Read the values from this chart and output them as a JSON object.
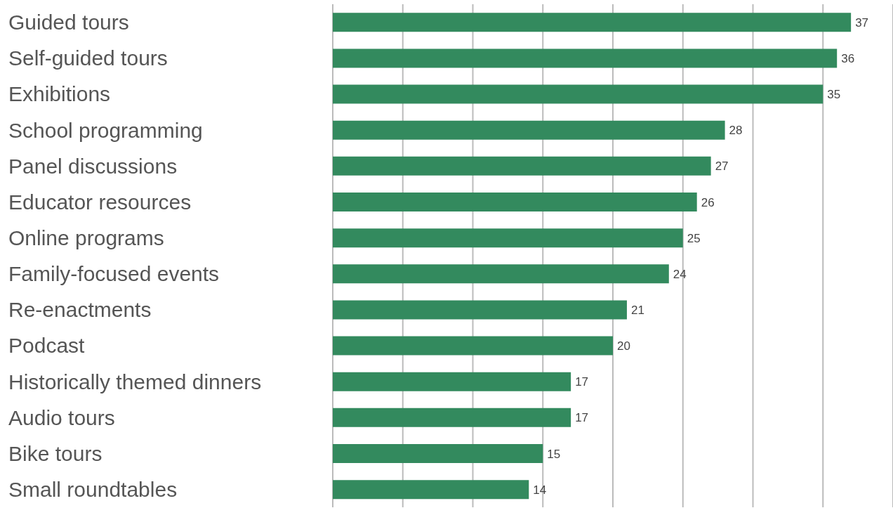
{
  "chart_data": {
    "type": "bar",
    "orientation": "horizontal",
    "categories": [
      "Guided tours",
      "Self-guided tours",
      "Exhibitions",
      "School programming",
      "Panel discussions",
      "Educator resources",
      "Online programs",
      "Family-focused events",
      "Re-enactments",
      "Podcast",
      "Historically themed dinners",
      "Audio tours",
      "Bike tours",
      "Small roundtables"
    ],
    "values": [
      37,
      36,
      35,
      28,
      27,
      26,
      25,
      24,
      21,
      20,
      17,
      17,
      15,
      14
    ],
    "color": "#338a5e",
    "grid": "x",
    "tick_labels": "y",
    "data_labels": true,
    "legend": false
  }
}
